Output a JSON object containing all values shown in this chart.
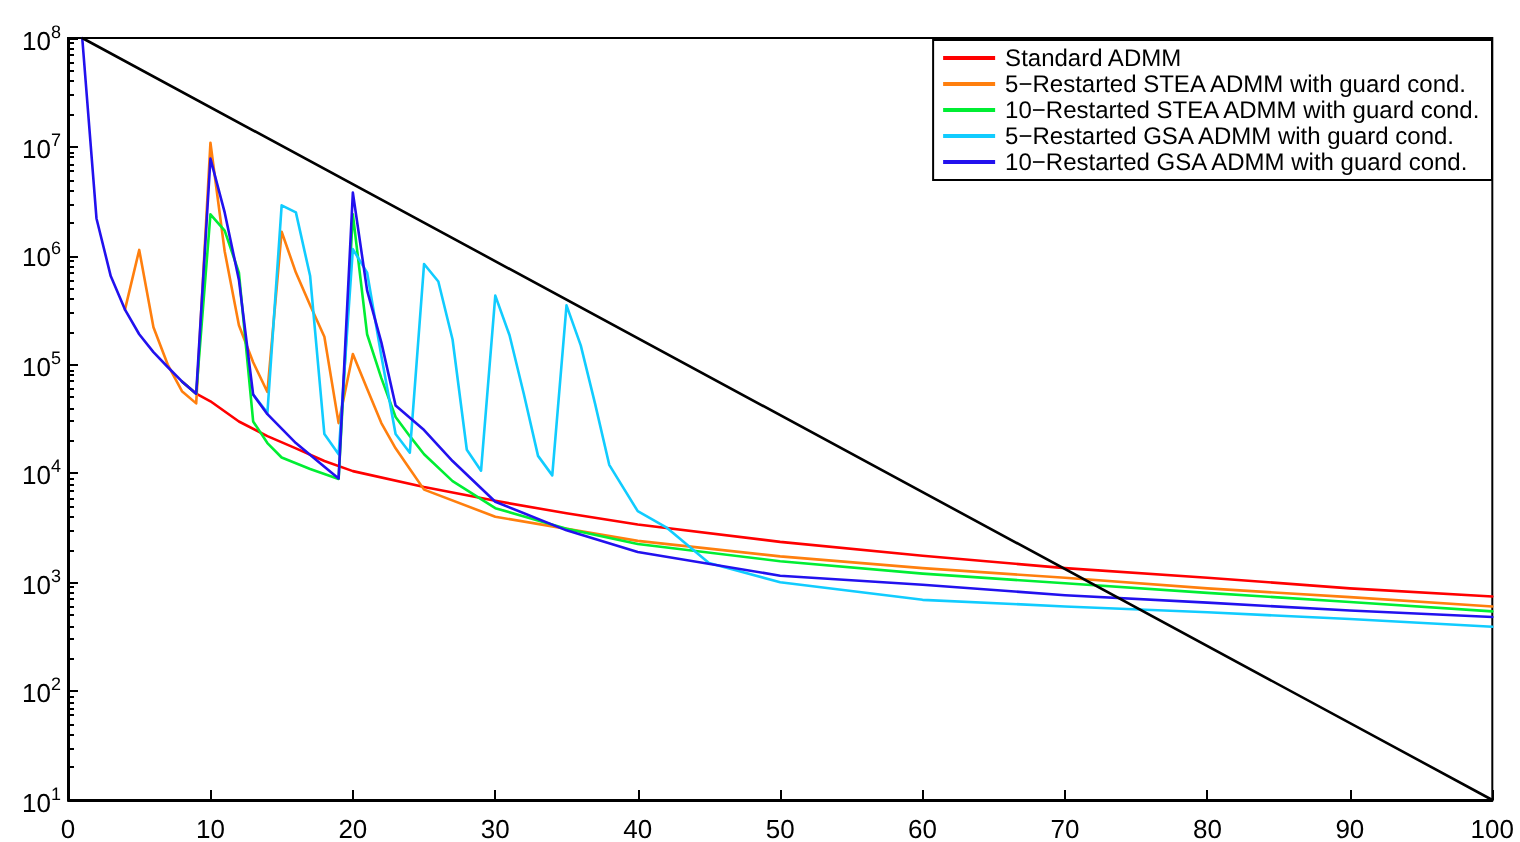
{
  "chart_data": {
    "type": "line",
    "log": "y",
    "xlim": [
      0,
      100
    ],
    "xticks": [
      0,
      10,
      20,
      30,
      40,
      50,
      60,
      70,
      80,
      90,
      100
    ],
    "ylim": [
      10,
      100000000
    ],
    "yticks": [
      {
        "value": 10,
        "label": "10$^{1}$"
      },
      {
        "value": 100,
        "label": "10$^{2}$"
      },
      {
        "value": 1000,
        "label": "10$^{3}$"
      },
      {
        "value": 10000,
        "label": "10$^{4}$"
      },
      {
        "value": 100000,
        "label": "10$^{5}$"
      },
      {
        "value": 1000000,
        "label": "10$^{6}$"
      },
      {
        "value": 10000000,
        "label": "10$^{7}$"
      },
      {
        "value": 100000000,
        "label": "10$^{8}$"
      }
    ],
    "grid": false,
    "legend": "top right",
    "marker": "none",
    "line_style": "solid",
    "series": [
      {
        "name": "Standard ADMM",
        "color": "#ff0000",
        "x": [
          8,
          9,
          10,
          12,
          14,
          16,
          18,
          20,
          25,
          30,
          35,
          40,
          50,
          60,
          70,
          80,
          90,
          100
        ],
        "values": [
          70000,
          54000,
          46000,
          30000,
          22000,
          17000,
          13000,
          10500,
          7500,
          5600,
          4300,
          3400,
          2350,
          1750,
          1350,
          1100,
          880,
          740
        ]
      },
      {
        "name": "5−Restarted STEA ADMM with guard cond.",
        "color": "#ff7f0e",
        "x": [
          4,
          5,
          6,
          7,
          8,
          9,
          10,
          11,
          12,
          13,
          14,
          15,
          16,
          17,
          18,
          19,
          20,
          21,
          22,
          23,
          24,
          25,
          30,
          40,
          50,
          60,
          70,
          80,
          90,
          100
        ],
        "values": [
          320000,
          1130000,
          220000,
          100000,
          57000,
          44000,
          10900000,
          1100000,
          230000,
          105000,
          56000,
          1660000,
          700000,
          350000,
          180000,
          29000,
          125000,
          60000,
          29000,
          17000,
          11000,
          7100,
          4000,
          2400,
          1730,
          1350,
          1100,
          880,
          730,
          600
        ]
      },
      {
        "name": "10−Restarted STEA ADMM with guard cond.",
        "color": "#00ee33",
        "x": [
          8,
          9,
          10,
          11,
          12,
          13,
          14,
          15,
          17,
          19,
          20,
          21,
          22,
          23,
          24,
          25,
          27,
          30,
          35,
          40,
          50,
          60,
          70,
          80,
          90,
          100
        ],
        "values": [
          70000,
          54000,
          2400000,
          1700000,
          700000,
          30000,
          19000,
          14000,
          11000,
          8900,
          2400000,
          190000,
          75000,
          33000,
          22000,
          15000,
          8500,
          4800,
          3100,
          2250,
          1560,
          1200,
          980,
          800,
          660,
          540
        ]
      },
      {
        "name": "5−Restarted GSA ADMM with guard cond.",
        "color": "#11ccff",
        "x": [
          13,
          14,
          15,
          16,
          17,
          18,
          19,
          20,
          21,
          22,
          23,
          24,
          25,
          26,
          27,
          28,
          29,
          30,
          31,
          32,
          33,
          34,
          35,
          36,
          37,
          38,
          40,
          42,
          45,
          50,
          60,
          70,
          80,
          90,
          100
        ],
        "values": [
          53000,
          36000,
          2900000,
          2500000,
          650000,
          23000,
          15000,
          1150000,
          700000,
          120000,
          23000,
          15500,
          840000,
          580000,
          170000,
          16500,
          10600,
          430000,
          186000,
          54000,
          14500,
          9600,
          350000,
          150000,
          44000,
          12000,
          4500,
          3200,
          1500,
          1000,
          690,
          600,
          530,
          460,
          390
        ]
      },
      {
        "name": "10−Restarted GSA ADMM with guard cond.",
        "color": "#2211ee",
        "x": [
          1,
          2,
          3,
          4,
          5,
          6,
          7,
          8,
          9,
          10,
          11,
          12,
          13,
          14,
          16,
          18,
          19,
          20,
          21,
          22,
          23,
          25,
          27,
          30,
          35,
          40,
          50,
          60,
          70,
          80,
          90,
          100
        ],
        "values": [
          100000000,
          2200000,
          650000,
          320000,
          190000,
          130000,
          95000,
          70000,
          54000,
          7800000,
          2500000,
          600000,
          53000,
          35000,
          19000,
          11500,
          9000,
          3800000,
          480000,
          160000,
          42000,
          25000,
          13000,
          5500,
          3000,
          1900,
          1150,
          950,
          760,
          650,
          550,
          480
        ]
      },
      {
        "color": "#000000",
        "x": [
          1,
          100
        ],
        "values": [
          100000000,
          10
        ]
      }
    ]
  }
}
